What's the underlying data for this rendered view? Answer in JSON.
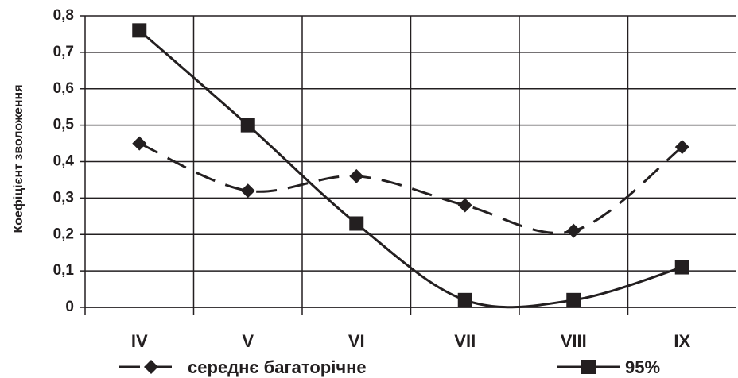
{
  "chart_data": {
    "type": "line",
    "y_label": "Коефіцієнт зволоження",
    "categories": [
      "IV",
      "V",
      "VI",
      "VII",
      "VIII",
      "IX"
    ],
    "series": [
      {
        "name": "середнє багаторічне",
        "color": "#231f20",
        "line_style": "dashed",
        "marker": "diamond",
        "values": [
          0.45,
          0.32,
          0.36,
          0.28,
          0.21,
          0.44
        ]
      },
      {
        "name": "95%",
        "color": "#231f20",
        "line_style": "solid",
        "marker": "square",
        "values": [
          0.76,
          0.5,
          0.23,
          0.02,
          0.02,
          0.11
        ]
      }
    ],
    "ylim": [
      0,
      0.8
    ],
    "yticks": [
      0,
      {
        "value": 0.1,
        "label": "0,1"
      },
      {
        "value": 0.2,
        "label": "0,2"
      },
      {
        "value": 0.3,
        "label": "0,3"
      },
      {
        "value": 0.4,
        "label": "0,4"
      },
      {
        "value": 0.5,
        "label": "0,5"
      },
      {
        "value": 0.6,
        "label": "0,6"
      },
      {
        "value": 0.7,
        "label": "0,7"
      },
      {
        "value": 0.8,
        "label": "0,8"
      }
    ],
    "grid": true,
    "legend": "bottom"
  }
}
